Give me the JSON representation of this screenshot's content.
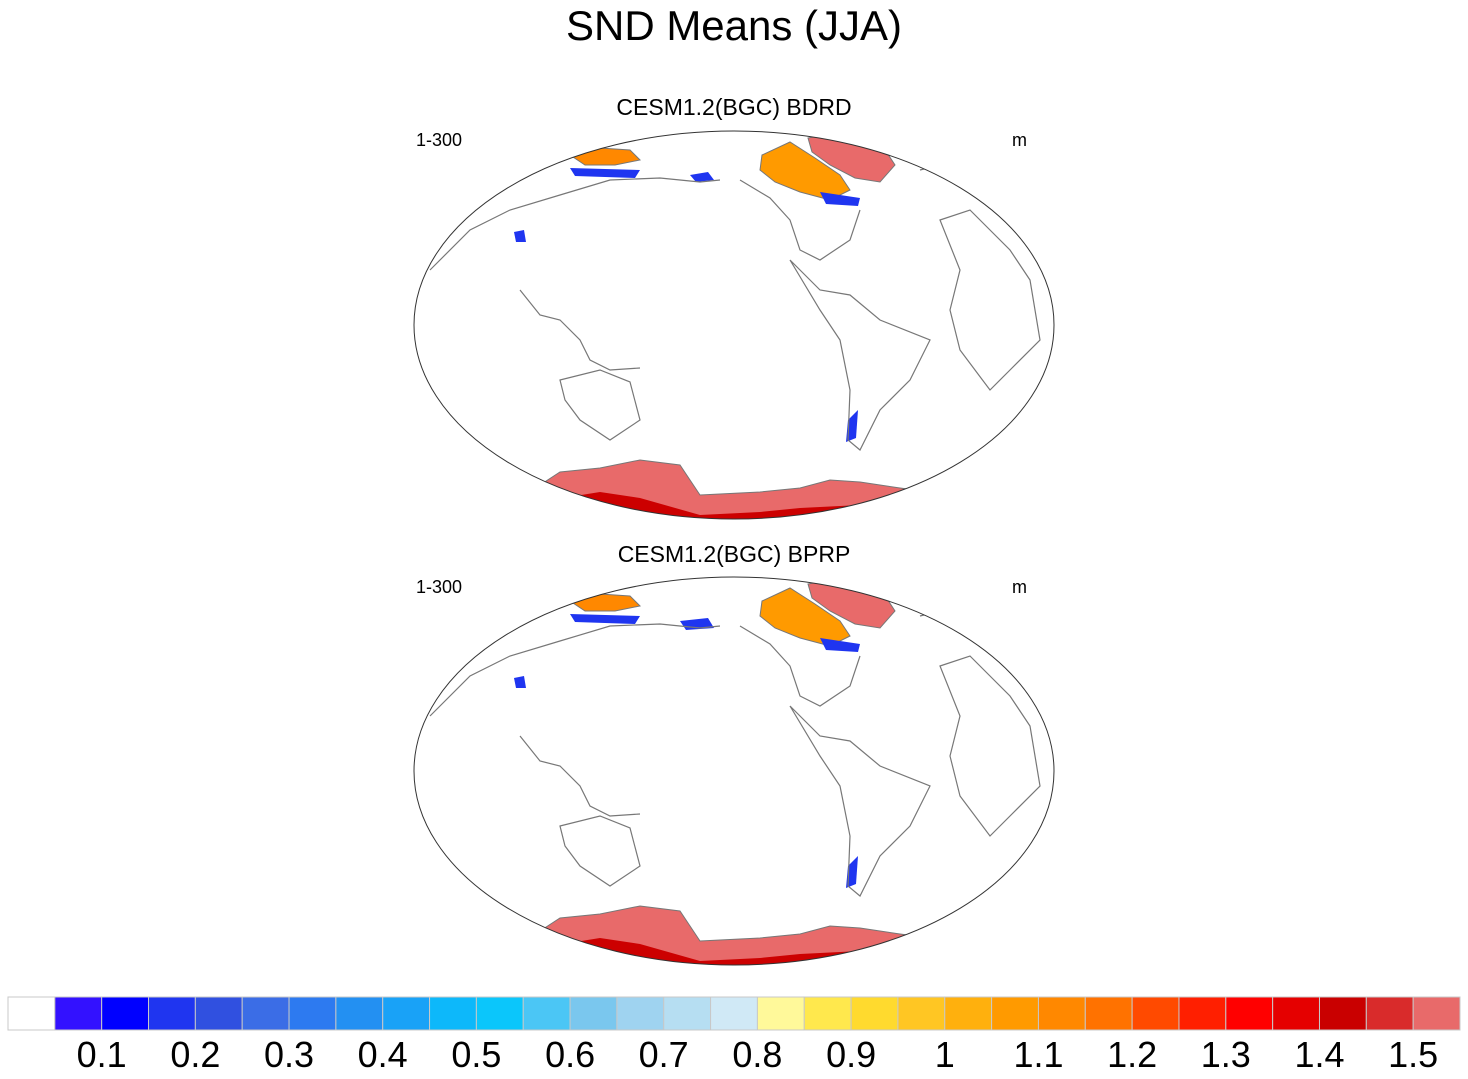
{
  "figure": {
    "title": "SND Means (JJA)"
  },
  "panels": [
    {
      "title": "CESM1.2(BGC) BDRD",
      "left_label": "1-300",
      "right_label": "m"
    },
    {
      "title": "CESM1.2(BGC) BPRP",
      "left_label": "1-300",
      "right_label": "m"
    }
  ],
  "colorbar": {
    "colors": [
      "#ffffff",
      "#3311ff",
      "#0000ff",
      "#1f35f0",
      "#3050e0",
      "#3b6de6",
      "#2d7af0",
      "#2390f2",
      "#19a2f7",
      "#0db8fa",
      "#0bc6fb",
      "#4bc6f5",
      "#7ac7ee",
      "#9fd3f0",
      "#b6def2",
      "#d0e9f6",
      "#fff99a",
      "#ffe84d",
      "#ffda2e",
      "#ffc623",
      "#ffb00d",
      "#ff9a00",
      "#ff8800",
      "#ff7200",
      "#ff4a00",
      "#ff1f00",
      "#ff0000",
      "#e50000",
      "#c90000",
      "#d92b2b",
      "#e86a6a"
    ],
    "labels": [
      "0.1",
      "0.2",
      "0.3",
      "0.4",
      "0.5",
      "0.6",
      "0.7",
      "0.8",
      "0.9",
      "1",
      "1.1",
      "1.2",
      "1.3",
      "1.4",
      "1.5"
    ]
  },
  "colors": {
    "coastline": "#777777",
    "antarctica_light": "#e86a6a",
    "antarctica_dark": "#cc0000"
  }
}
